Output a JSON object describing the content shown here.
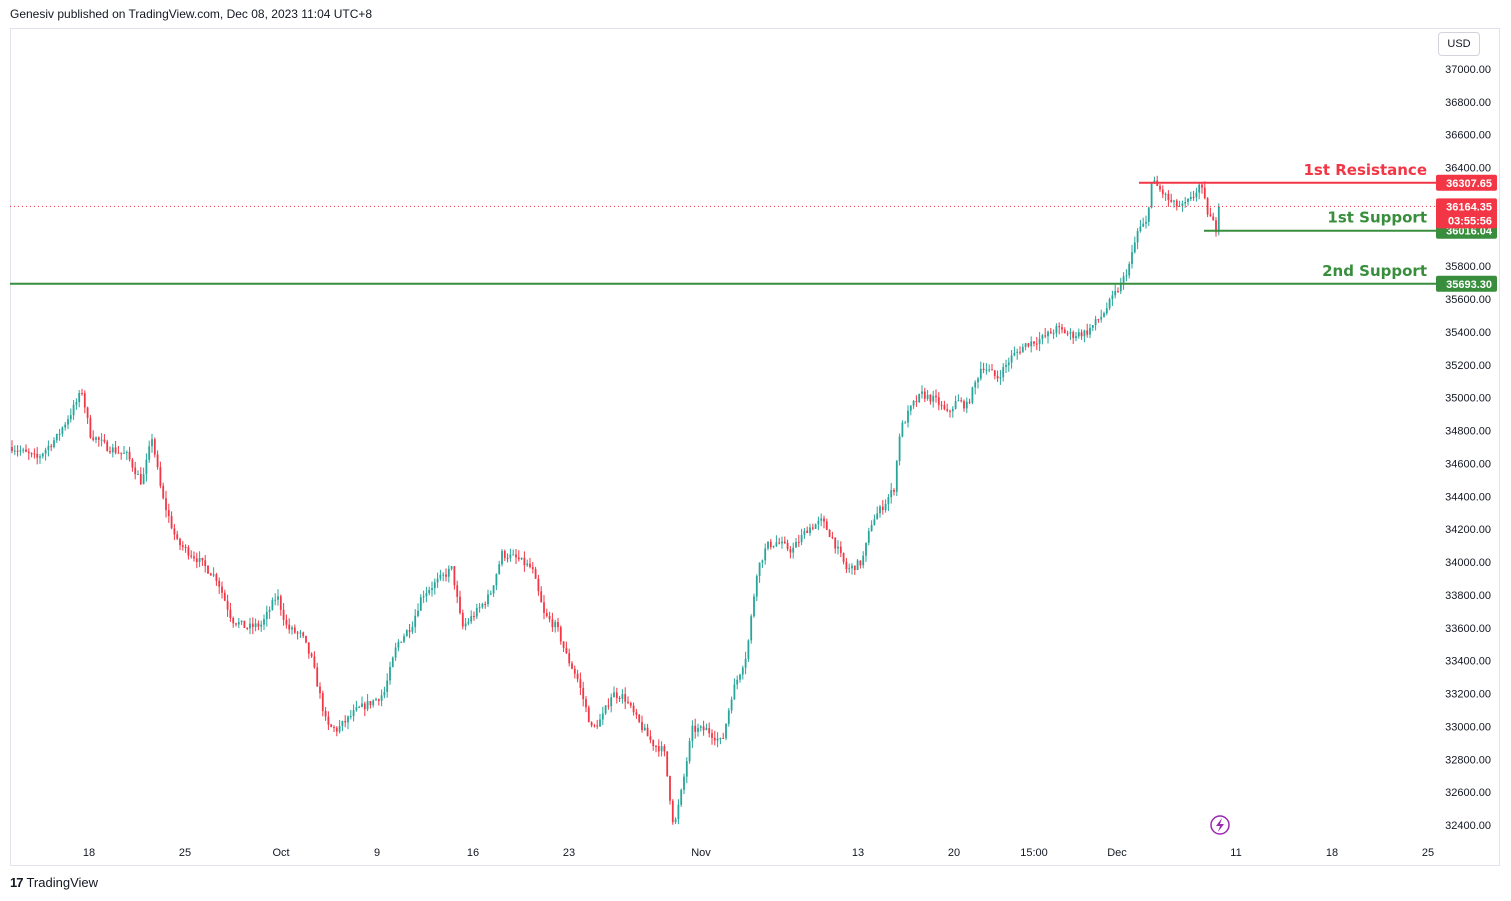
{
  "header": {
    "publish_line": "Genesiv published on TradingView.com, Dec 08, 2023 11:04 UTC+8"
  },
  "price_scale": {
    "currency": "USD"
  },
  "footer": {
    "brand": "TradingView",
    "logo_mark": "17"
  },
  "colors": {
    "up": "#26a69a",
    "down": "#f23645",
    "resistance": "#f23645",
    "support": "#388e3c",
    "last_price": "#f23645",
    "alert_icon": "#9c27b0"
  },
  "chart_data": {
    "type": "candlestick",
    "y_range": [
      32330,
      37110
    ],
    "y_ticks": [
      32400,
      32600,
      32800,
      33000,
      33200,
      33400,
      33600,
      33800,
      34000,
      34200,
      34400,
      34600,
      34800,
      35000,
      35200,
      35400,
      35600,
      35800,
      36400,
      36600,
      36800,
      37000
    ],
    "x_labels": [
      "18",
      "25",
      "Oct",
      "9",
      "16",
      "23",
      "Nov",
      "13",
      "20",
      "15:00",
      "Dec",
      "11",
      "18",
      "25"
    ],
    "levels": [
      {
        "name": "1st Resistance",
        "price": 36307.65,
        "tag": "36307.65",
        "color": "#f23645",
        "kind": "resistance"
      },
      {
        "name": "1st Support",
        "price": 36016.04,
        "tag": "36016.04",
        "color": "#388e3c",
        "kind": "support"
      },
      {
        "name": "2nd Support",
        "price": 35693.3,
        "tag": "35693.30",
        "color": "#388e3c",
        "kind": "support"
      }
    ],
    "last_price": {
      "price": 36164.35,
      "tag": "36164.35",
      "countdown": "03:55:56"
    },
    "waypoints": [
      [
        0,
        34700
      ],
      [
        25,
        34630
      ],
      [
        45,
        34760
      ],
      [
        60,
        34920
      ],
      [
        70,
        35040
      ],
      [
        78,
        34780
      ],
      [
        95,
        34700
      ],
      [
        115,
        34650
      ],
      [
        130,
        34480
      ],
      [
        140,
        34760
      ],
      [
        150,
        34400
      ],
      [
        165,
        34120
      ],
      [
        185,
        34020
      ],
      [
        205,
        33900
      ],
      [
        220,
        33650
      ],
      [
        235,
        33600
      ],
      [
        250,
        33620
      ],
      [
        265,
        33800
      ],
      [
        275,
        33600
      ],
      [
        290,
        33550
      ],
      [
        300,
        33400
      ],
      [
        315,
        33000
      ],
      [
        325,
        32980
      ],
      [
        345,
        33100
      ],
      [
        360,
        33150
      ],
      [
        372,
        33200
      ],
      [
        385,
        33500
      ],
      [
        400,
        33620
      ],
      [
        410,
        33800
      ],
      [
        425,
        33880
      ],
      [
        440,
        33960
      ],
      [
        450,
        33600
      ],
      [
        465,
        33700
      ],
      [
        478,
        33800
      ],
      [
        490,
        34050
      ],
      [
        505,
        34020
      ],
      [
        520,
        33960
      ],
      [
        532,
        33680
      ],
      [
        545,
        33600
      ],
      [
        555,
        33420
      ],
      [
        565,
        33300
      ],
      [
        580,
        32980
      ],
      [
        590,
        33050
      ],
      [
        600,
        33200
      ],
      [
        612,
        33180
      ],
      [
        625,
        33040
      ],
      [
        640,
        32900
      ],
      [
        652,
        32850
      ],
      [
        662,
        32380
      ],
      [
        670,
        32620
      ],
      [
        680,
        32980
      ],
      [
        695,
        32980
      ],
      [
        710,
        32900
      ],
      [
        720,
        33200
      ],
      [
        735,
        33450
      ],
      [
        745,
        33950
      ],
      [
        755,
        34100
      ],
      [
        765,
        34120
      ],
      [
        780,
        34070
      ],
      [
        795,
        34200
      ],
      [
        810,
        34250
      ],
      [
        820,
        34150
      ],
      [
        835,
        33950
      ],
      [
        850,
        34000
      ],
      [
        860,
        34250
      ],
      [
        872,
        34350
      ],
      [
        882,
        34450
      ],
      [
        888,
        34800
      ],
      [
        900,
        34950
      ],
      [
        910,
        35020
      ],
      [
        925,
        34980
      ],
      [
        935,
        34900
      ],
      [
        945,
        34980
      ],
      [
        955,
        34950
      ],
      [
        970,
        35200
      ],
      [
        985,
        35120
      ],
      [
        1000,
        35250
      ],
      [
        1015,
        35330
      ],
      [
        1030,
        35360
      ],
      [
        1045,
        35420
      ],
      [
        1060,
        35380
      ],
      [
        1075,
        35400
      ],
      [
        1090,
        35500
      ],
      [
        1100,
        35600
      ],
      [
        1110,
        35700
      ],
      [
        1118,
        35820
      ],
      [
        1126,
        36020
      ],
      [
        1134,
        36060
      ],
      [
        1140,
        36320
      ],
      [
        1150,
        36250
      ],
      [
        1160,
        36180
      ],
      [
        1170,
        36160
      ],
      [
        1180,
        36210
      ],
      [
        1188,
        36300
      ],
      [
        1196,
        36120
      ],
      [
        1204,
        36030
      ],
      [
        1212,
        36130
      ],
      [
        1219,
        36164
      ]
    ]
  }
}
